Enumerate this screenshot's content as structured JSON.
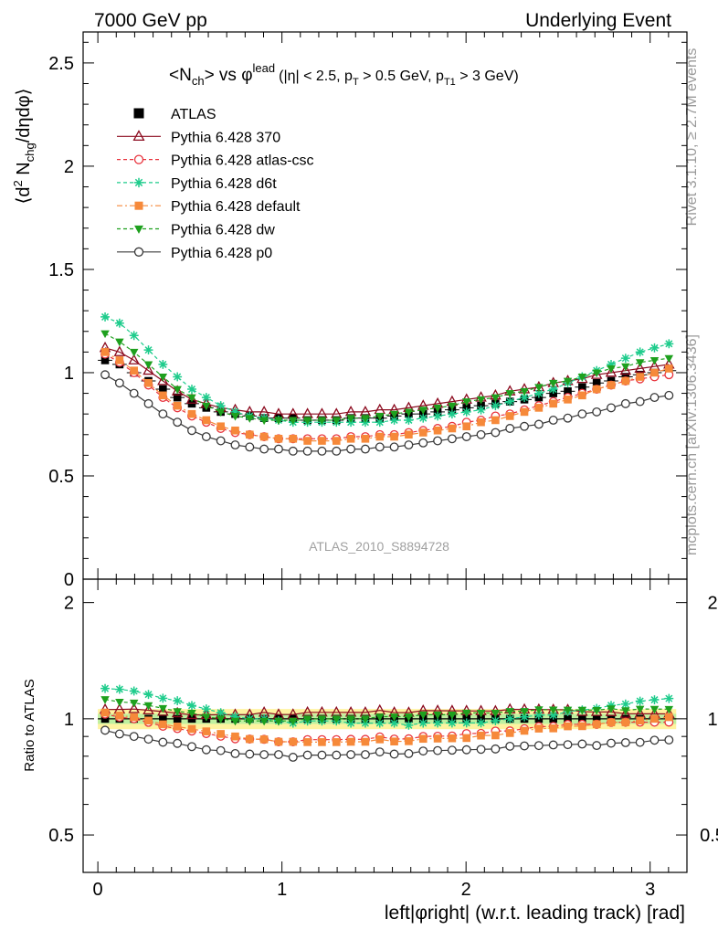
{
  "header": {
    "left": "7000 GeV pp",
    "right": "Underlying Event"
  },
  "side_labels": {
    "rivet": "Rivet 3.1.10, ≥ 2.7M events",
    "mcplots": "mcplots.cern.ch [arXiv:1306.3436]"
  },
  "watermark": "ATLAS_2010_S8894728",
  "plot_title": {
    "main_a": "<N",
    "main_sub1": "ch",
    "main_b": "> vs φ",
    "main_sup": "lead",
    "cond_a": "(|η| < 2.5, p",
    "cond_sub1": "T",
    "cond_b": " > 0.5 GeV, p",
    "cond_sub2": "T1",
    "cond_c": " > 3 GeV)"
  },
  "ylabel_main": {
    "a": "⟨d",
    "sup": "2",
    "b": " N",
    "sub": "chg",
    "c": "/dηdφ⟩"
  },
  "ylabel_ratio": "Ratio to ATLAS",
  "xlabel": "left|φright| (w.r.t. leading track) [rad]",
  "chart_data": {
    "type": "scatter",
    "xlim": [
      -0.08,
      3.2
    ],
    "ylim_main": [
      0,
      2.65
    ],
    "ylim_ratio": [
      0.4,
      2.3
    ],
    "x_ticks": [
      0,
      1,
      2,
      3
    ],
    "y_ticks_main": [
      0,
      0.5,
      1,
      1.5,
      2,
      2.5
    ],
    "y_tick_labels_main": [
      "0",
      "0.5",
      "1",
      "1.5",
      "2",
      "2.5"
    ],
    "y_ticks_ratio": [
      0.5,
      1,
      2
    ],
    "y_tick_labels_ratio": [
      "0.5",
      "1",
      "2"
    ],
    "legend_position": "top-left",
    "series": [
      {
        "name": "ATLAS",
        "color": "#000000",
        "marker": "square-filled",
        "line": "none",
        "values": [
          1.06,
          1.04,
          1.0,
          0.96,
          0.92,
          0.88,
          0.85,
          0.83,
          0.81,
          0.8,
          0.79,
          0.78,
          0.78,
          0.78,
          0.77,
          0.77,
          0.77,
          0.78,
          0.78,
          0.78,
          0.79,
          0.8,
          0.8,
          0.81,
          0.82,
          0.83,
          0.84,
          0.85,
          0.86,
          0.87,
          0.88,
          0.9,
          0.91,
          0.93,
          0.95,
          0.96,
          0.98,
          0.99,
          1.0,
          1.01
        ]
      },
      {
        "name": "Pythia 6.428 370",
        "color": "#8b0a1e",
        "marker": "triangle-open",
        "line": "solid",
        "values": [
          1.12,
          1.1,
          1.06,
          1.01,
          0.96,
          0.91,
          0.87,
          0.85,
          0.83,
          0.82,
          0.81,
          0.81,
          0.8,
          0.8,
          0.8,
          0.8,
          0.8,
          0.81,
          0.81,
          0.82,
          0.82,
          0.83,
          0.84,
          0.85,
          0.86,
          0.87,
          0.88,
          0.89,
          0.91,
          0.92,
          0.93,
          0.95,
          0.96,
          0.97,
          0.99,
          1.0,
          1.01,
          1.02,
          1.03,
          1.04
        ]
      },
      {
        "name": "Pythia 6.428 atlas-csc",
        "color": "#e8333d",
        "marker": "circle-open",
        "line": "dashed",
        "values": [
          1.09,
          1.05,
          1.0,
          0.94,
          0.88,
          0.83,
          0.79,
          0.76,
          0.73,
          0.71,
          0.7,
          0.69,
          0.68,
          0.68,
          0.68,
          0.68,
          0.68,
          0.69,
          0.69,
          0.7,
          0.7,
          0.71,
          0.72,
          0.73,
          0.74,
          0.76,
          0.77,
          0.79,
          0.8,
          0.82,
          0.84,
          0.86,
          0.88,
          0.9,
          0.92,
          0.94,
          0.96,
          0.97,
          0.98,
          0.99
        ]
      },
      {
        "name": "Pythia 6.428 d6t",
        "color": "#1ecc8c",
        "marker": "asterisk",
        "line": "dashed",
        "values": [
          1.27,
          1.24,
          1.18,
          1.11,
          1.04,
          0.98,
          0.92,
          0.88,
          0.84,
          0.81,
          0.79,
          0.78,
          0.77,
          0.76,
          0.76,
          0.76,
          0.76,
          0.76,
          0.76,
          0.76,
          0.77,
          0.77,
          0.78,
          0.79,
          0.8,
          0.81,
          0.82,
          0.84,
          0.86,
          0.88,
          0.9,
          0.92,
          0.95,
          0.98,
          1.01,
          1.04,
          1.07,
          1.1,
          1.12,
          1.14
        ]
      },
      {
        "name": "Pythia 6.428 default",
        "color": "#f6893a",
        "marker": "square-filled",
        "line": "dashdot",
        "values": [
          1.1,
          1.06,
          1.01,
          0.95,
          0.89,
          0.84,
          0.8,
          0.77,
          0.74,
          0.72,
          0.7,
          0.69,
          0.68,
          0.68,
          0.67,
          0.67,
          0.67,
          0.68,
          0.68,
          0.69,
          0.69,
          0.7,
          0.71,
          0.72,
          0.73,
          0.74,
          0.76,
          0.77,
          0.79,
          0.81,
          0.83,
          0.85,
          0.87,
          0.89,
          0.92,
          0.94,
          0.96,
          0.98,
          1.0,
          1.02
        ]
      },
      {
        "name": "Pythia 6.428 dw",
        "color": "#1ea01e",
        "marker": "triangle-down-filled",
        "line": "dashed",
        "values": [
          1.19,
          1.15,
          1.1,
          1.04,
          0.98,
          0.92,
          0.88,
          0.84,
          0.81,
          0.79,
          0.78,
          0.77,
          0.77,
          0.77,
          0.77,
          0.77,
          0.77,
          0.78,
          0.78,
          0.79,
          0.8,
          0.81,
          0.82,
          0.83,
          0.84,
          0.86,
          0.87,
          0.88,
          0.9,
          0.91,
          0.93,
          0.95,
          0.96,
          0.98,
          1.0,
          1.02,
          1.03,
          1.05,
          1.06,
          1.07
        ]
      },
      {
        "name": "Pythia 6.428 p0",
        "color": "#3a3a3a",
        "marker": "circle-open",
        "line": "solid",
        "values": [
          0.99,
          0.95,
          0.9,
          0.85,
          0.8,
          0.76,
          0.72,
          0.69,
          0.67,
          0.65,
          0.64,
          0.63,
          0.63,
          0.62,
          0.62,
          0.62,
          0.62,
          0.63,
          0.63,
          0.64,
          0.64,
          0.65,
          0.66,
          0.67,
          0.68,
          0.69,
          0.7,
          0.71,
          0.73,
          0.74,
          0.75,
          0.77,
          0.78,
          0.8,
          0.81,
          0.83,
          0.85,
          0.86,
          0.88,
          0.89
        ]
      }
    ]
  }
}
